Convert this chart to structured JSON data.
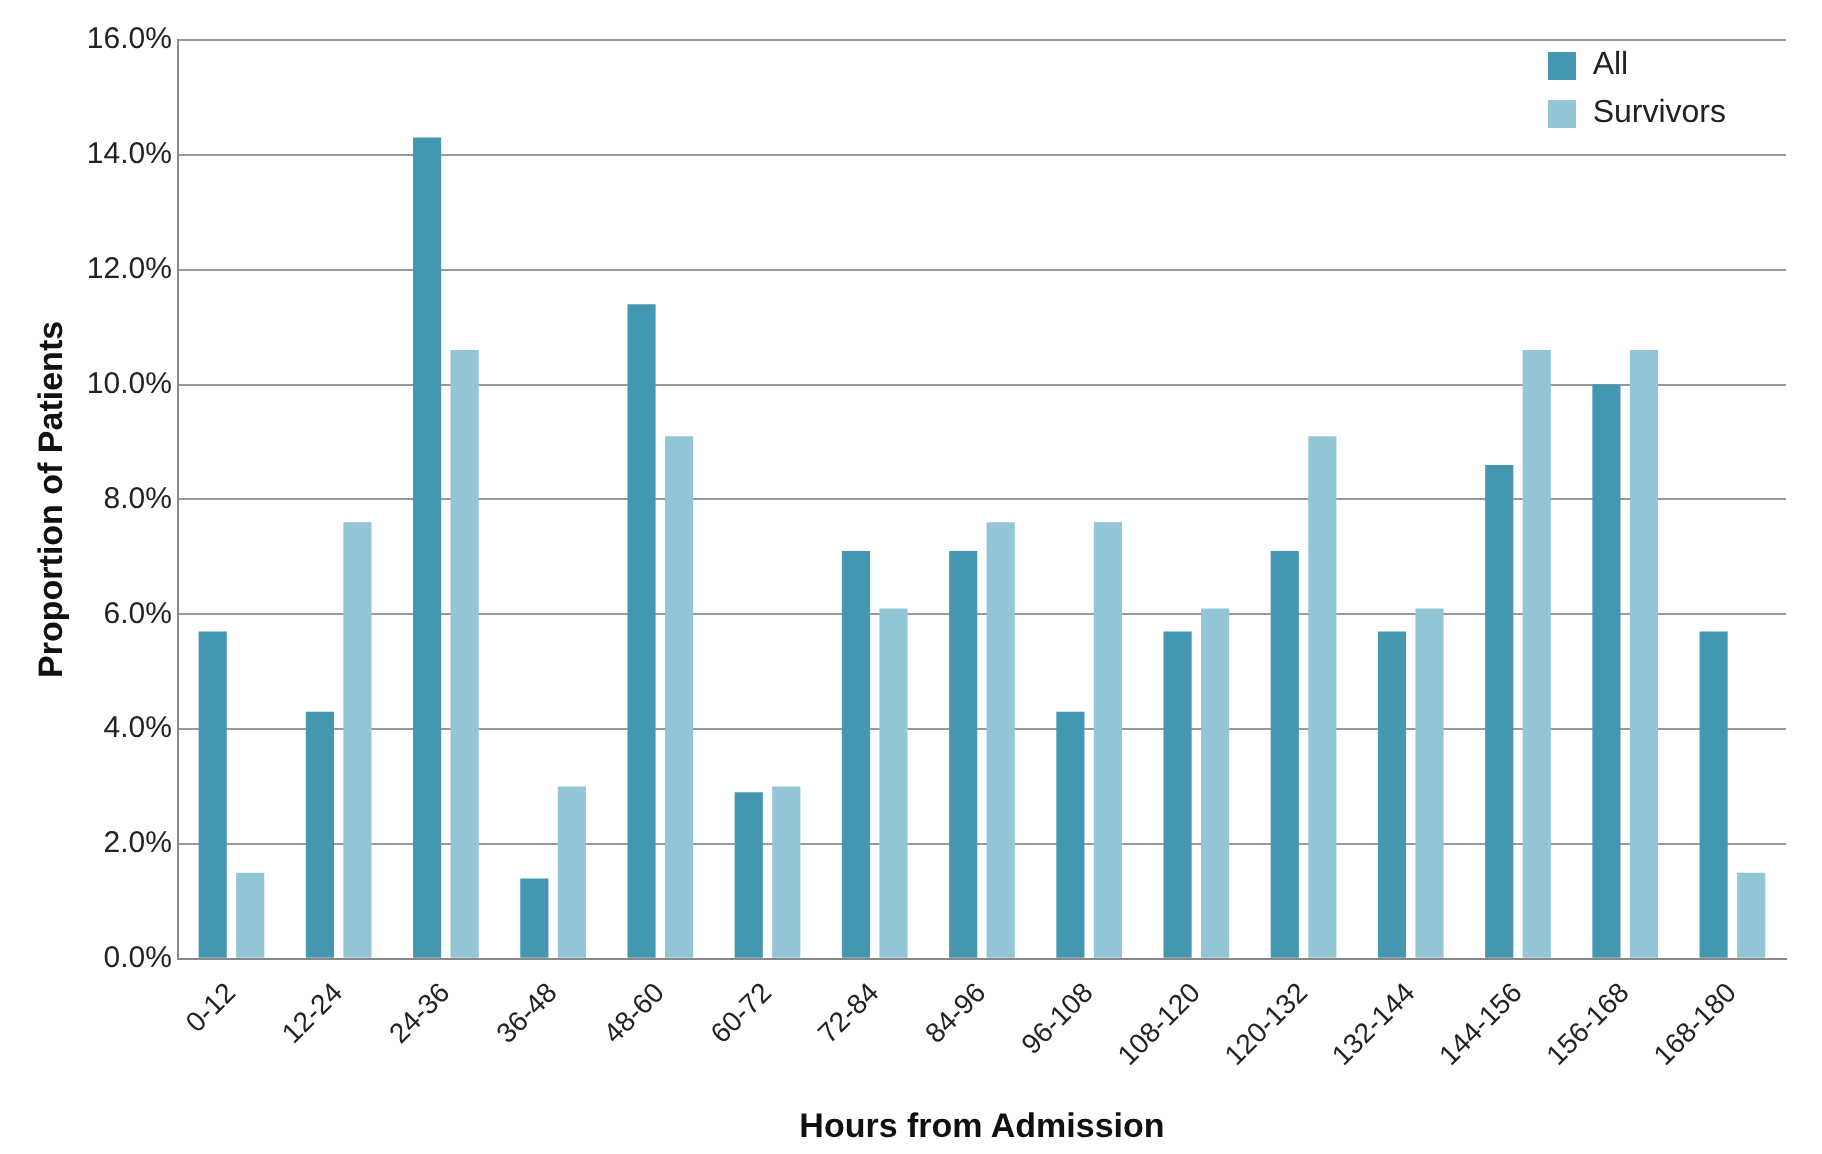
{
  "chart_data": {
    "type": "bar",
    "xlabel": "Hours from Admission",
    "ylabel": "Proportion of Patients",
    "categories": [
      "0-12",
      "12-24",
      "24-36",
      "36-48",
      "48-60",
      "60-72",
      "72-84",
      "84-96",
      "96-108",
      "108-120",
      "120-132",
      "132-144",
      "144-156",
      "156-168",
      "168-180"
    ],
    "series": [
      {
        "name": "All",
        "color": "#4397b0",
        "values": [
          5.7,
          4.3,
          14.3,
          1.4,
          11.4,
          2.9,
          7.1,
          7.1,
          4.3,
          5.7,
          7.1,
          5.7,
          8.6,
          10.0,
          5.7
        ]
      },
      {
        "name": "Survivors",
        "color": "#92c5d6",
        "values": [
          1.5,
          7.6,
          10.6,
          3.0,
          9.1,
          3.0,
          6.1,
          7.6,
          7.6,
          6.1,
          9.1,
          6.1,
          10.6,
          10.6,
          1.5
        ]
      }
    ],
    "ylim": [
      0,
      16
    ],
    "yticks": [
      {
        "value": 0,
        "label": "0.0%"
      },
      {
        "value": 2,
        "label": "2.0%"
      },
      {
        "value": 4,
        "label": "4.0%"
      },
      {
        "value": 6,
        "label": "6.0%"
      },
      {
        "value": 8,
        "label": "8.0%"
      },
      {
        "value": 10,
        "label": "10.0%"
      },
      {
        "value": 12,
        "label": "12.0%"
      },
      {
        "value": 14,
        "label": "14.0%"
      },
      {
        "value": 16,
        "label": "16.0%"
      }
    ],
    "grid": "y",
    "legend": "top right"
  }
}
